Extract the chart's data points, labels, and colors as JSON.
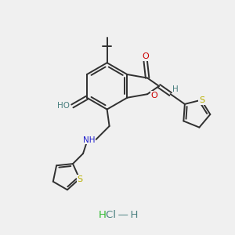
{
  "bg_color": "#f0f0f0",
  "bond_color": "#303030",
  "o_color": "#cc0000",
  "s_color": "#b8b000",
  "n_color": "#2020cc",
  "h_color": "#4a8080",
  "hcl_color": "#33bb33",
  "lw": 1.4,
  "fs": 7.2,
  "fs_hcl": 9.0,
  "xlim": [
    0,
    10
  ],
  "ylim": [
    0,
    10
  ]
}
